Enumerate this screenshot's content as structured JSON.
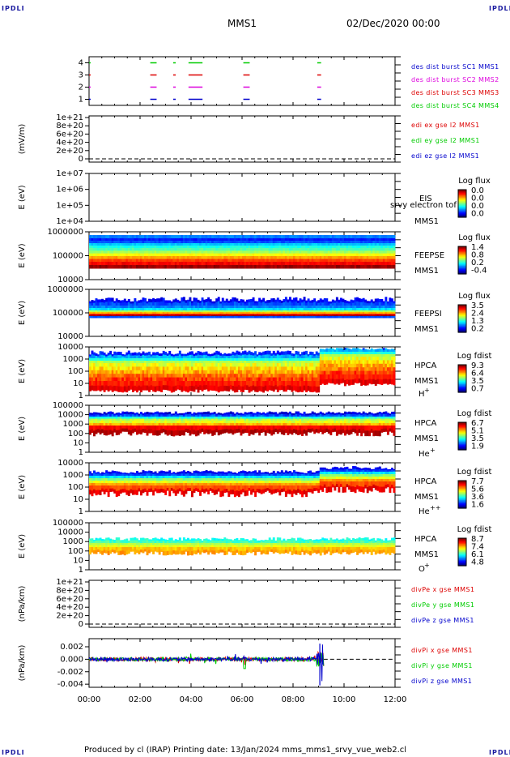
{
  "corners": {
    "top_left": "IPDLI",
    "top_right": "IPDLI",
    "bottom_left": "IPDLI",
    "bottom_right": "IPDLI"
  },
  "header": {
    "spacecraft": "MMS1",
    "date": "02/Dec/2020 00:00"
  },
  "footer": {
    "text": "Produced by cl (IRAP)   Printing date: 13/Jan/2024   mms_mms1_srvy_vue_web2.cl"
  },
  "colors": {
    "mms1": "#0000cc",
    "mms2": "#dd00dd",
    "mms3": "#dd0000",
    "mms4": "#00cc00",
    "axis": "#000000"
  },
  "chart_data": {
    "type": "multi-panel time series / spectrogram stack",
    "x_axis": {
      "ticks": [
        "00:00",
        "02:00",
        "04:00",
        "06:00",
        "08:00",
        "10:00",
        "12:00"
      ],
      "range_hours": [
        0,
        12
      ]
    },
    "panels": [
      {
        "id": "burst",
        "type": "scatter",
        "y_ticks": [
          "4",
          "3",
          "2",
          "1"
        ],
        "ylim": [
          0.5,
          4.5
        ],
        "legend": [
          {
            "label": "des dist burst SC1 MMS1",
            "color": "#0000cc",
            "level": 1
          },
          {
            "label": "des dist burst SC2 MMS2",
            "color": "#dd00dd",
            "level": 2
          },
          {
            "label": "des dist burst SC3 MMS3",
            "color": "#dd0000",
            "level": 3
          },
          {
            "label": "des dist burst SC4 MMS4",
            "color": "#00cc00",
            "level": 4
          }
        ],
        "intervals_hours": [
          [
            0.0,
            0.03
          ],
          [
            2.4,
            2.65
          ],
          [
            3.3,
            3.4
          ],
          [
            3.9,
            4.45
          ],
          [
            6.05,
            6.3
          ],
          [
            8.95,
            9.1
          ]
        ]
      },
      {
        "id": "edi",
        "type": "line",
        "ylabel": "(mV/m)",
        "y_ticks": [
          "1e+21",
          "8e+20",
          "6e+20",
          "4e+20",
          "2e+20",
          "0"
        ],
        "ylim": [
          0,
          1e+21
        ],
        "legend": [
          {
            "label": "edi ex gse l2 MMS1",
            "color": "#dd0000"
          },
          {
            "label": "edi ey gse l2 MMS1",
            "color": "#00cc00"
          },
          {
            "label": "edi ez gse l2 MMS1",
            "color": "#0000cc"
          }
        ]
      },
      {
        "id": "eis",
        "type": "heatmap",
        "ylabel": "E (eV)",
        "y_ticks": [
          "1e+07",
          "1e+06",
          "1e+05",
          "1e+04"
        ],
        "ylim_log": [
          4,
          7
        ],
        "labels": [
          "EIS",
          "MMS1"
        ],
        "overlay_text": "srvy electron tof",
        "colorbar": {
          "title": "Log flux",
          "ticks": [
            "0.0",
            "0.0",
            "0.0",
            "0.0"
          ]
        }
      },
      {
        "id": "feepse",
        "type": "heatmap",
        "ylabel": "E (eV)",
        "y_ticks": [
          "1000000",
          "100000",
          "10000"
        ],
        "ylim_log": [
          4,
          6
        ],
        "labels": [
          "FEEPSE",
          "MMS1"
        ],
        "colorbar": {
          "title": "Log flux",
          "ticks": [
            "1.4",
            "0.8",
            "0.2",
            "-0.4"
          ]
        }
      },
      {
        "id": "feepsi",
        "type": "heatmap",
        "ylabel": "E (eV)",
        "y_ticks": [
          "1000000",
          "100000",
          "10000"
        ],
        "ylim_log": [
          4,
          6
        ],
        "labels": [
          "FEEPSI",
          "MMS1"
        ],
        "colorbar": {
          "title": "Log flux",
          "ticks": [
            "3.5",
            "2.4",
            "1.3",
            "0.2"
          ]
        }
      },
      {
        "id": "hpca_h",
        "type": "heatmap",
        "ylabel": "E (eV)",
        "y_ticks": [
          "10000",
          "1000",
          "100",
          "10",
          "1"
        ],
        "ylim_log": [
          0,
          4.3
        ],
        "labels": [
          "HPCA",
          "MMS1"
        ],
        "species": {
          "base": "H",
          "sup": "+"
        },
        "colorbar": {
          "title": "Log fdist",
          "ticks": [
            "9.3",
            "6.4",
            "3.5",
            "0.7"
          ]
        }
      },
      {
        "id": "hpca_he",
        "type": "heatmap",
        "ylabel": "E (eV)",
        "y_ticks": [
          "100000",
          "10000",
          "1000",
          "100",
          "10",
          "1"
        ],
        "ylim_log": [
          0,
          5
        ],
        "labels": [
          "HPCA",
          "MMS1"
        ],
        "species": {
          "base": "He",
          "sup": "+"
        },
        "colorbar": {
          "title": "Log fdist",
          "ticks": [
            "6.7",
            "5.1",
            "3.5",
            "1.9"
          ]
        }
      },
      {
        "id": "hpca_hepp",
        "type": "heatmap",
        "ylabel": "E (eV)",
        "y_ticks": [
          "10000",
          "1000",
          "100",
          "10",
          "1"
        ],
        "ylim_log": [
          0,
          4.3
        ],
        "labels": [
          "HPCA",
          "MMS1"
        ],
        "species": {
          "base": "He",
          "sup": "++"
        },
        "colorbar": {
          "title": "Log fdist",
          "ticks": [
            "7.7",
            "5.6",
            "3.6",
            "1.6"
          ]
        }
      },
      {
        "id": "hpca_o",
        "type": "heatmap",
        "ylabel": "E (eV)",
        "y_ticks": [
          "100000",
          "10000",
          "1000",
          "100",
          "10",
          "1"
        ],
        "ylim_log": [
          0,
          5
        ],
        "labels": [
          "HPCA",
          "MMS1"
        ],
        "species": {
          "base": "O",
          "sup": "+"
        },
        "colorbar": {
          "title": "Log fdist",
          "ticks": [
            "8.7",
            "7.4",
            "6.1",
            "4.8"
          ]
        }
      },
      {
        "id": "divpe",
        "type": "line",
        "ylabel": "(nPa/km)",
        "y_ticks": [
          "1e+21",
          "8e+20",
          "6e+20",
          "4e+20",
          "2e+20",
          "0"
        ],
        "ylim": [
          0,
          1e+21
        ],
        "legend": [
          {
            "label": "divPe x gse MMS1",
            "color": "#dd0000"
          },
          {
            "label": "divPe y gse MMS1",
            "color": "#00cc00"
          },
          {
            "label": "divPe z gse MMS1",
            "color": "#0000cc"
          }
        ]
      },
      {
        "id": "divpi",
        "type": "line",
        "ylabel": "(nPa/km)",
        "y_ticks": [
          "0.002",
          "0.000",
          "-0.002",
          "-0.004"
        ],
        "ylim": [
          -0.0045,
          0.0033
        ],
        "legend": [
          {
            "label": "divPi x gse MMS1",
            "color": "#dd0000"
          },
          {
            "label": "divPi y gse MMS1",
            "color": "#00cc00"
          },
          {
            "label": "divPi z gse MMS1",
            "color": "#0000cc"
          }
        ],
        "data_end_hours": 9.2
      }
    ]
  }
}
